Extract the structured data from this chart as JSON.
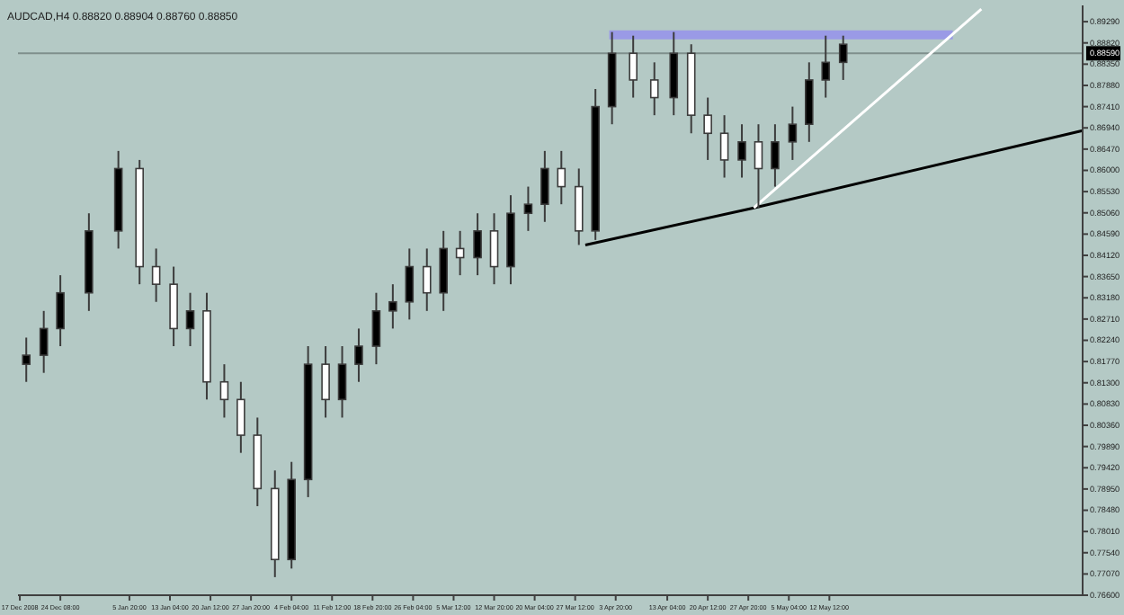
{
  "chart_data": {
    "type": "candlestick",
    "title": "AUDCAD,H4 0.88820 0.88904 0.88760 0.88850",
    "x": [
      "2008-12-18T04:00",
      "2008-12-21T08:00",
      "2008-12-24T08:00",
      "2008-12-29T12:00",
      "2009-01-03T20:00",
      "2009-01-07T16:00",
      "2009-01-10T16:00",
      "2009-01-13T20:00",
      "2009-01-16T20:00",
      "2009-01-19T20:00",
      "2009-01-23T00:00",
      "2009-01-26T00:00",
      "2009-01-29T00:00",
      "2009-02-01T04:00",
      "2009-02-04T04:00",
      "2009-02-07T04:00",
      "2009-02-10T08:00",
      "2009-02-13T08:00",
      "2009-02-16T08:00",
      "2009-02-19T12:00",
      "2009-02-22T12:00",
      "2009-02-25T12:00",
      "2009-02-28T16:00",
      "2009-03-03T16:00",
      "2009-03-06T16:00",
      "2009-03-09T20:00",
      "2009-03-12T20:00",
      "2009-03-15T20:00",
      "2009-03-19T00:00",
      "2009-03-22T00:00",
      "2009-03-25T00:00",
      "2009-03-28T04:00",
      "2009-03-31T04:00",
      "2009-04-03T04:00",
      "2009-04-07T00:00",
      "2009-04-10T20:00",
      "2009-04-14T08:00",
      "2009-04-17T12:00",
      "2009-04-20T12:00",
      "2009-04-23T12:00",
      "2009-04-26T16:00",
      "2009-04-29T16:00",
      "2009-05-02T16:00",
      "2009-05-05T20:00",
      "2009-05-08T20:00",
      "2009-05-11T20:00",
      "2009-05-15T00:00"
    ],
    "ohlc": [
      [
        0.8171,
        0.823,
        0.8132,
        0.8191
      ],
      [
        0.8191,
        0.8289,
        0.8152,
        0.825
      ],
      [
        0.825,
        0.8368,
        0.8211,
        0.8329
      ],
      [
        0.8329,
        0.8505,
        0.8289,
        0.8466
      ],
      [
        0.8466,
        0.8643,
        0.8427,
        0.8604
      ],
      [
        0.8604,
        0.8623,
        0.8348,
        0.8387
      ],
      [
        0.8387,
        0.8427,
        0.8309,
        0.8348
      ],
      [
        0.8348,
        0.8387,
        0.8211,
        0.825
      ],
      [
        0.825,
        0.8329,
        0.8211,
        0.8289
      ],
      [
        0.8289,
        0.8329,
        0.8093,
        0.8132
      ],
      [
        0.8132,
        0.8171,
        0.8053,
        0.8093
      ],
      [
        0.8093,
        0.8132,
        0.7975,
        0.8014
      ],
      [
        0.8014,
        0.8053,
        0.7857,
        0.7896
      ],
      [
        0.7896,
        0.7936,
        0.77,
        0.7739
      ],
      [
        0.7739,
        0.7955,
        0.7719,
        0.7916
      ],
      [
        0.7916,
        0.8211,
        0.7877,
        0.8171
      ],
      [
        0.8171,
        0.8211,
        0.8053,
        0.8093
      ],
      [
        0.8093,
        0.8211,
        0.8053,
        0.8171
      ],
      [
        0.8171,
        0.825,
        0.8132,
        0.8211
      ],
      [
        0.8211,
        0.8329,
        0.8171,
        0.8289
      ],
      [
        0.8289,
        0.8348,
        0.825,
        0.8309
      ],
      [
        0.8309,
        0.8427,
        0.827,
        0.8387
      ],
      [
        0.8387,
        0.8427,
        0.8289,
        0.8329
      ],
      [
        0.8329,
        0.8466,
        0.8289,
        0.8427
      ],
      [
        0.8427,
        0.8466,
        0.8368,
        0.8407
      ],
      [
        0.8407,
        0.8505,
        0.8368,
        0.8466
      ],
      [
        0.8466,
        0.8505,
        0.8348,
        0.8387
      ],
      [
        0.8387,
        0.8545,
        0.8348,
        0.8505
      ],
      [
        0.8505,
        0.8564,
        0.8466,
        0.8525
      ],
      [
        0.8525,
        0.8643,
        0.8486,
        0.8604
      ],
      [
        0.8604,
        0.8643,
        0.8525,
        0.8564
      ],
      [
        0.8564,
        0.8604,
        0.8435,
        0.8466
      ],
      [
        0.8466,
        0.878,
        0.8446,
        0.8741
      ],
      [
        0.8741,
        0.8906,
        0.8702,
        0.8859
      ],
      [
        0.8859,
        0.8898,
        0.8761,
        0.88
      ],
      [
        0.88,
        0.8839,
        0.8722,
        0.8761
      ],
      [
        0.8761,
        0.8906,
        0.8722,
        0.8859
      ],
      [
        0.8859,
        0.8879,
        0.8682,
        0.8722
      ],
      [
        0.8722,
        0.8761,
        0.8623,
        0.8682
      ],
      [
        0.8682,
        0.8722,
        0.8584,
        0.8623
      ],
      [
        0.8623,
        0.8702,
        0.8584,
        0.8663
      ],
      [
        0.8663,
        0.8702,
        0.8517,
        0.8604
      ],
      [
        0.8604,
        0.8702,
        0.8564,
        0.8663
      ],
      [
        0.8663,
        0.8741,
        0.8623,
        0.8702
      ],
      [
        0.8702,
        0.8839,
        0.8663,
        0.88
      ],
      [
        0.88,
        0.8898,
        0.8761,
        0.8839
      ],
      [
        0.8839,
        0.8898,
        0.88,
        0.8879
      ]
    ],
    "color": "#3c3c3c",
    "series": [
      {
        "type": "line",
        "color": "#9a9ae6",
        "x": [
          "2009-04-02T16:00",
          "2009-06-03T20:00"
        ],
        "values": [
          0.89,
          0.89
        ]
      },
      {
        "type": "line",
        "color": "#000000",
        "x": [
          "2009-03-29T08:00",
          "2009-04-28T20:00",
          "2009-06-27T08:00"
        ],
        "values": [
          0.8435,
          0.8517,
          0.8688
        ]
      },
      {
        "type": "line",
        "color": "#ffffff",
        "x": [
          "2009-04-28T20:00",
          "2009-06-09T00:00"
        ],
        "values": [
          0.8517,
          0.8957
        ]
      }
    ],
    "ref_lines": [
      {
        "axis": "y",
        "value": 0.8859,
        "label": "0.88590",
        "color": "#7f8f8c"
      }
    ],
    "xlim": [
      "2008-12-16T16:00",
      "2009-06-27T08:00"
    ],
    "ylim": [
      0.766,
      0.8965
    ],
    "xticks": [
      {
        "value": "2008-12-17T00:00",
        "label": "17 Dec 2008"
      },
      {
        "value": "2008-12-24T08:00",
        "label": "24 Dec 08:00"
      },
      {
        "value": "2009-01-05T20:00",
        "label": "5 Jan 20:00"
      },
      {
        "value": "2009-01-13T04:00",
        "label": "13 Jan 04:00"
      },
      {
        "value": "2009-01-20T12:00",
        "label": "20 Jan 12:00"
      },
      {
        "value": "2009-01-27T20:00",
        "label": "27 Jan 20:00"
      },
      {
        "value": "2009-02-04T04:00",
        "label": "4 Feb 04:00"
      },
      {
        "value": "2009-02-11T12:00",
        "label": "11 Feb 12:00"
      },
      {
        "value": "2009-02-18T20:00",
        "label": "18 Feb 20:00"
      },
      {
        "value": "2009-02-26T04:00",
        "label": "26 Feb 04:00"
      },
      {
        "value": "2009-03-05T12:00",
        "label": "5 Mar 12:00"
      },
      {
        "value": "2009-03-12T20:00",
        "label": "12 Mar 20:00"
      },
      {
        "value": "2009-03-20T04:00",
        "label": "20 Mar 04:00"
      },
      {
        "value": "2009-03-27T12:00",
        "label": "27 Mar 12:00"
      },
      {
        "value": "2009-04-03T20:00",
        "label": "3 Apr 20:00"
      },
      {
        "value": "2009-04-13T04:00",
        "label": "13 Apr 04:00"
      },
      {
        "value": "2009-04-20T12:00",
        "label": "20 Apr 12:00"
      },
      {
        "value": "2009-04-27T20:00",
        "label": "27 Apr 20:00"
      },
      {
        "value": "2009-05-05T04:00",
        "label": "5 May 04:00"
      },
      {
        "value": "2009-05-12T12:00",
        "label": "12 May 12:00"
      }
    ],
    "yticks": [
      {
        "value": 0.766,
        "label": "0.76600"
      },
      {
        "value": 0.7707,
        "label": "0.77070"
      },
      {
        "value": 0.7754,
        "label": "0.77540"
      },
      {
        "value": 0.7801,
        "label": "0.78010"
      },
      {
        "value": 0.7848,
        "label": "0.78480"
      },
      {
        "value": 0.7895,
        "label": "0.78950"
      },
      {
        "value": 0.7942,
        "label": "0.79420"
      },
      {
        "value": 0.7989,
        "label": "0.79890"
      },
      {
        "value": 0.8036,
        "label": "0.80360"
      },
      {
        "value": 0.8083,
        "label": "0.80830"
      },
      {
        "value": 0.813,
        "label": "0.81300"
      },
      {
        "value": 0.8177,
        "label": "0.81770"
      },
      {
        "value": 0.8224,
        "label": "0.82240"
      },
      {
        "value": 0.8271,
        "label": "0.82710"
      },
      {
        "value": 0.8318,
        "label": "0.83180"
      },
      {
        "value": 0.8365,
        "label": "0.83650"
      },
      {
        "value": 0.8412,
        "label": "0.84120"
      },
      {
        "value": 0.8459,
        "label": "0.84590"
      },
      {
        "value": 0.8506,
        "label": "0.85060"
      },
      {
        "value": 0.8553,
        "label": "0.85530"
      },
      {
        "value": 0.86,
        "label": "0.86000"
      },
      {
        "value": 0.8647,
        "label": "0.86470"
      },
      {
        "value": 0.8694,
        "label": "0.86940"
      },
      {
        "value": 0.8741,
        "label": "0.87410"
      },
      {
        "value": 0.8788,
        "label": "0.87880"
      },
      {
        "value": 0.8835,
        "label": "0.88350"
      },
      {
        "value": 0.8882,
        "label": "0.88820"
      },
      {
        "value": 0.8929,
        "label": "0.89290"
      }
    ]
  }
}
